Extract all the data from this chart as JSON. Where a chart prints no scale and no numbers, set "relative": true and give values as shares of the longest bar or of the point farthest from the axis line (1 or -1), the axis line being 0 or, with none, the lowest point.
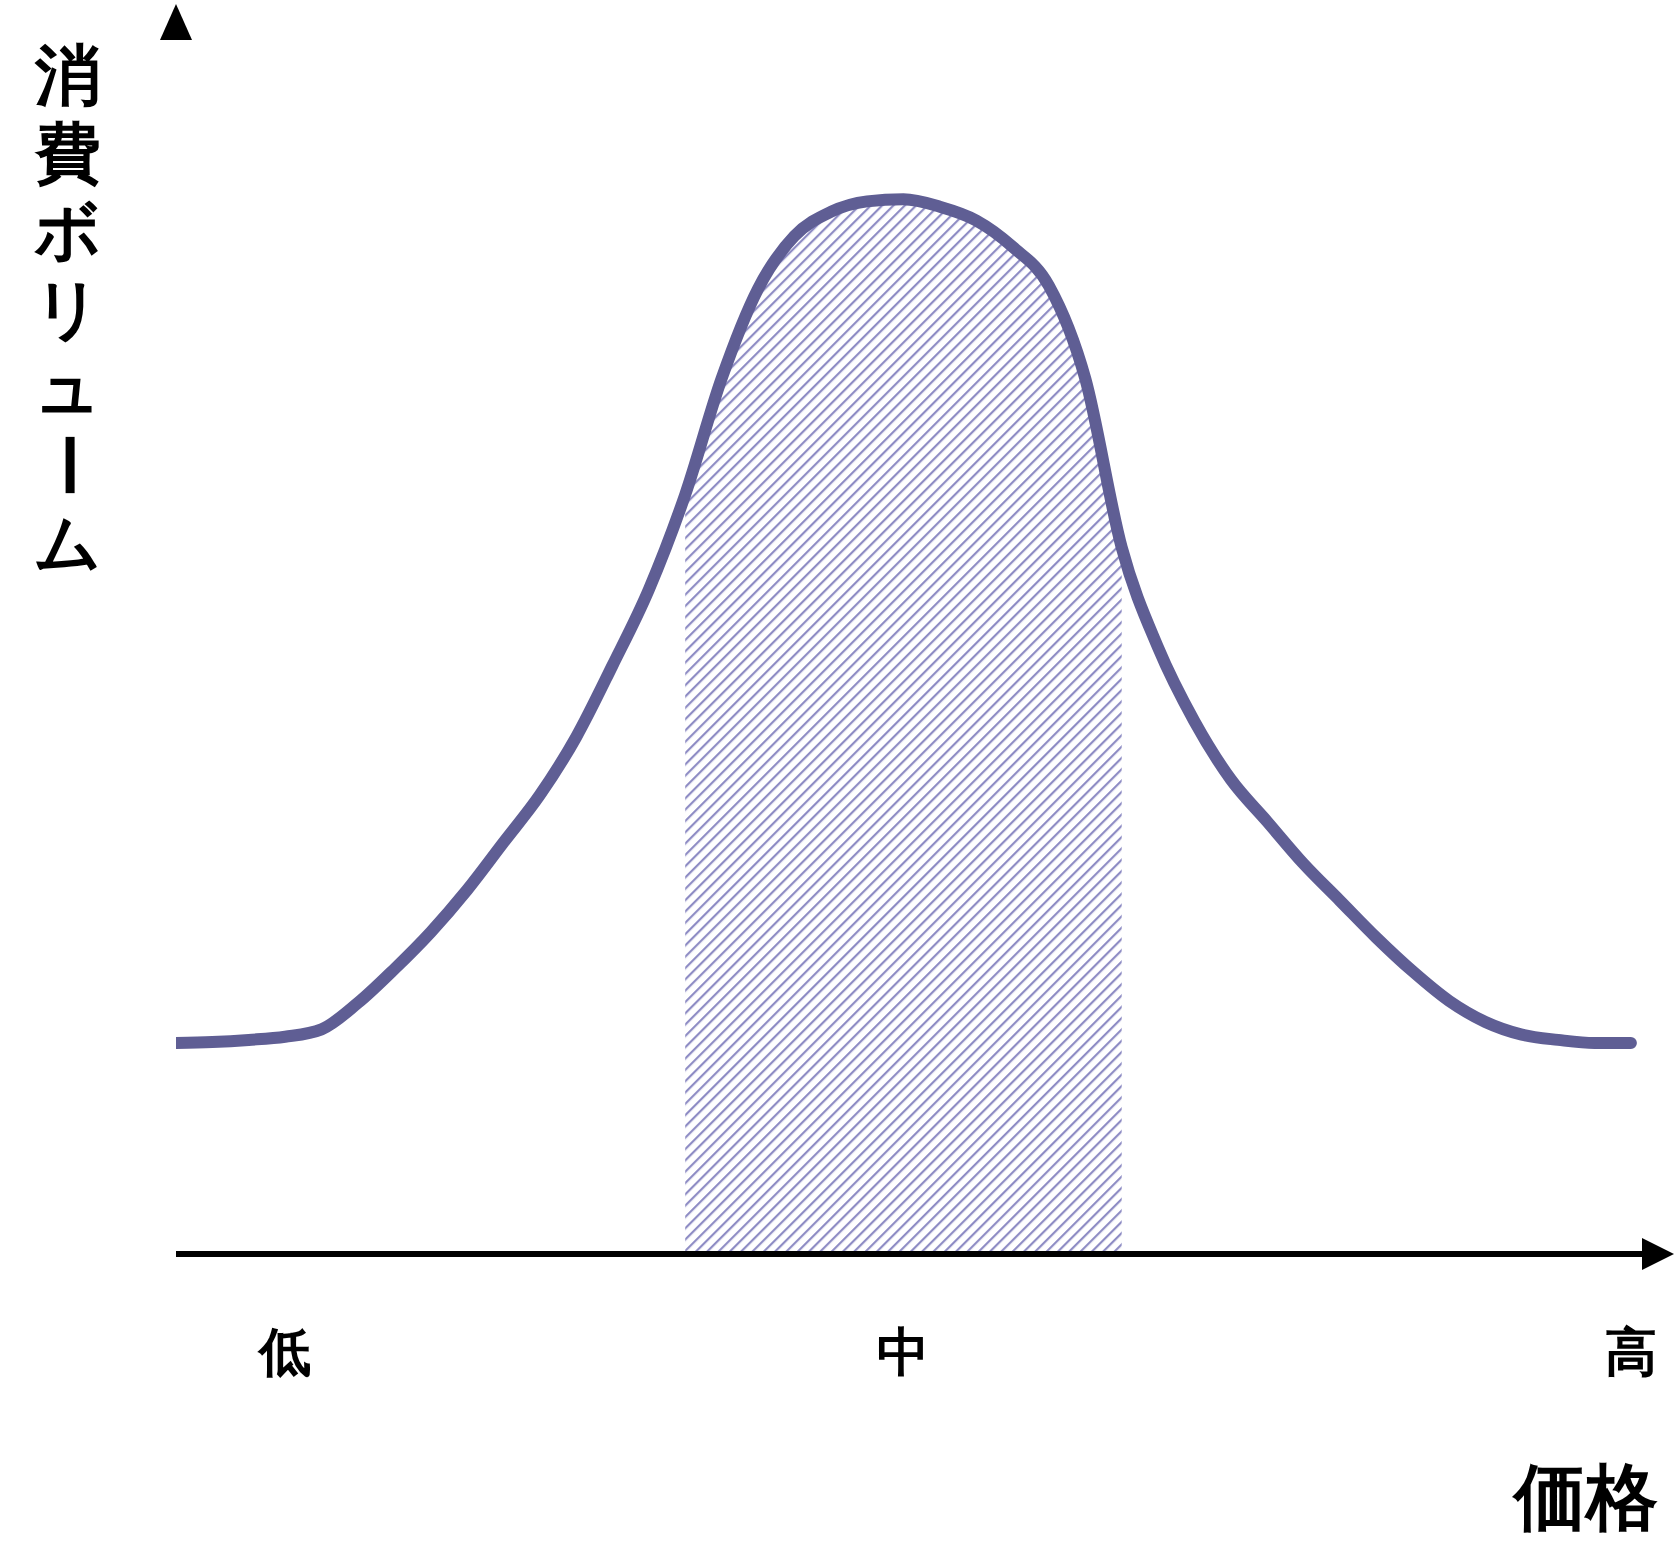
{
  "chart_data": {
    "type": "line",
    "relative": true,
    "xlabel": "価格",
    "ylabel": "消費ボリューム",
    "tick_labels": "x",
    "categories": [
      null,
      null,
      null,
      "低",
      null,
      null,
      null,
      null,
      null,
      null,
      null,
      null,
      null,
      null,
      null,
      null,
      null,
      null,
      null,
      null,
      "中",
      null,
      null,
      null,
      null,
      null,
      null,
      null,
      null,
      null,
      null,
      null,
      null,
      null,
      null,
      null,
      null,
      null,
      null,
      null,
      "高"
    ],
    "series": [
      {
        "color": "#5f5e94",
        "values": [
          0.2,
          0.201,
          0.203,
          0.206,
          0.213,
          0.238,
          0.27,
          0.305,
          0.345,
          0.39,
          0.435,
          0.49,
          0.558,
          0.63,
          0.72,
          0.83,
          0.915,
          0.965,
          0.988,
          0.998,
          1,
          0.993,
          0.98,
          0.955,
          0.918,
          0.83,
          0.67,
          0.575,
          0.505,
          0.45,
          0.41,
          0.37,
          0.335,
          0.3,
          0.268,
          0.24,
          0.22,
          0.208,
          0.203,
          0.2,
          0.2
        ]
      },
      {
        "type": "area",
        "color": "#8e8cc4",
        "values": [
          null,
          null,
          null,
          null,
          null,
          null,
          null,
          null,
          null,
          null,
          null,
          null,
          null,
          null,
          0.72,
          0.83,
          0.915,
          0.965,
          0.988,
          0.998,
          1,
          0.993,
          0.98,
          0.955,
          0.918,
          0.83,
          0.67,
          null,
          null,
          null,
          null,
          null,
          null,
          null,
          null,
          null,
          null,
          null,
          null,
          null,
          null
        ]
      }
    ]
  }
}
